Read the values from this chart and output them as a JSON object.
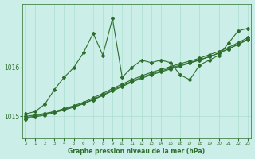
{
  "xlabel": "Graphe pression niveau de la mer (hPa)",
  "ylabel": "",
  "bg_color": "#cceee8",
  "line_color": "#2d6e2d",
  "grid_color": "#aaddcc",
  "ylim": [
    1014.55,
    1017.3
  ],
  "xlim": [
    -0.3,
    23.3
  ],
  "xticks": [
    0,
    1,
    2,
    3,
    4,
    5,
    6,
    7,
    8,
    9,
    10,
    11,
    12,
    13,
    14,
    15,
    16,
    17,
    18,
    19,
    20,
    21,
    22,
    23
  ],
  "yticks": [
    1015,
    1016
  ],
  "series_volatile": [
    1015.05,
    1015.1,
    1015.25,
    1015.55,
    1015.8,
    1016.0,
    1016.3,
    1016.7,
    1016.25,
    1017.0,
    1015.8,
    1016.0,
    1016.15,
    1016.1,
    1016.15,
    1016.1,
    1015.85,
    1015.75,
    1016.05,
    1016.15,
    1016.25,
    1016.5,
    1016.75,
    1016.8
  ],
  "trend1": [
    1015.0,
    1015.03,
    1015.06,
    1015.1,
    1015.15,
    1015.2,
    1015.27,
    1015.35,
    1015.44,
    1015.54,
    1015.63,
    1015.72,
    1015.8,
    1015.87,
    1015.93,
    1015.99,
    1016.05,
    1016.1,
    1016.16,
    1016.22,
    1016.3,
    1016.38,
    1016.48,
    1016.58
  ],
  "trend2": [
    1014.97,
    1015.01,
    1015.05,
    1015.1,
    1015.16,
    1015.22,
    1015.29,
    1015.38,
    1015.47,
    1015.57,
    1015.66,
    1015.75,
    1015.83,
    1015.9,
    1015.96,
    1016.02,
    1016.08,
    1016.13,
    1016.19,
    1016.26,
    1016.33,
    1016.41,
    1016.51,
    1016.61
  ],
  "trend3": [
    1014.95,
    1014.99,
    1015.03,
    1015.08,
    1015.13,
    1015.19,
    1015.26,
    1015.34,
    1015.43,
    1015.52,
    1015.61,
    1015.7,
    1015.78,
    1015.85,
    1015.91,
    1015.97,
    1016.03,
    1016.09,
    1016.15,
    1016.22,
    1016.29,
    1016.38,
    1016.47,
    1016.57
  ]
}
